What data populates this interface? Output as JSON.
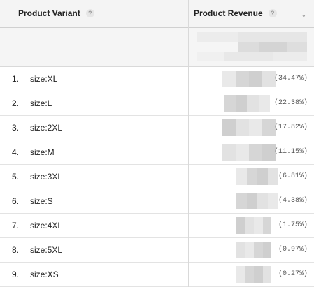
{
  "header": {
    "variant_label": "Product Variant",
    "revenue_label": "Product Revenue",
    "help_glyph": "?",
    "sort_glyph": "↓"
  },
  "rows": [
    {
      "index": "1.",
      "name": "size:XL",
      "pct": "(34.47%)"
    },
    {
      "index": "2.",
      "name": "size:L",
      "pct": "(22.38%)"
    },
    {
      "index": "3.",
      "name": "size:2XL",
      "pct": "(17.82%)"
    },
    {
      "index": "4.",
      "name": "size:M",
      "pct": "(11.15%)"
    },
    {
      "index": "5.",
      "name": "size:3XL",
      "pct": "(6.81%)"
    },
    {
      "index": "6.",
      "name": "size:S",
      "pct": "(4.38%)"
    },
    {
      "index": "7.",
      "name": "size:4XL",
      "pct": "(1.75%)"
    },
    {
      "index": "8.",
      "name": "size:5XL",
      "pct": "(0.97%)"
    },
    {
      "index": "9.",
      "name": "size:XS",
      "pct": "(0.27%)"
    }
  ]
}
